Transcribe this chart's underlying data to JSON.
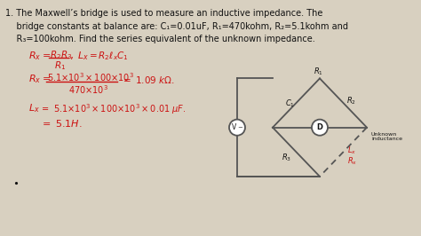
{
  "bg_color": "#d8d0c0",
  "content_bg": "#f5f2ec",
  "text_color": "#111111",
  "red_color": "#cc1111",
  "dark_bar_color": "#2a2a2a",
  "title_lines": [
    "1. The Maxwell’s bridge is used to measure an inductive impedance. The",
    "    bridge constants at balance are: C₁=0.01uF, R₁=470kohm, R₂=5.1kohm and",
    "    R₃=100kohm. Find the series equivalent of the unknown impedance."
  ],
  "figsize": [
    4.74,
    2.66
  ],
  "dpi": 100
}
